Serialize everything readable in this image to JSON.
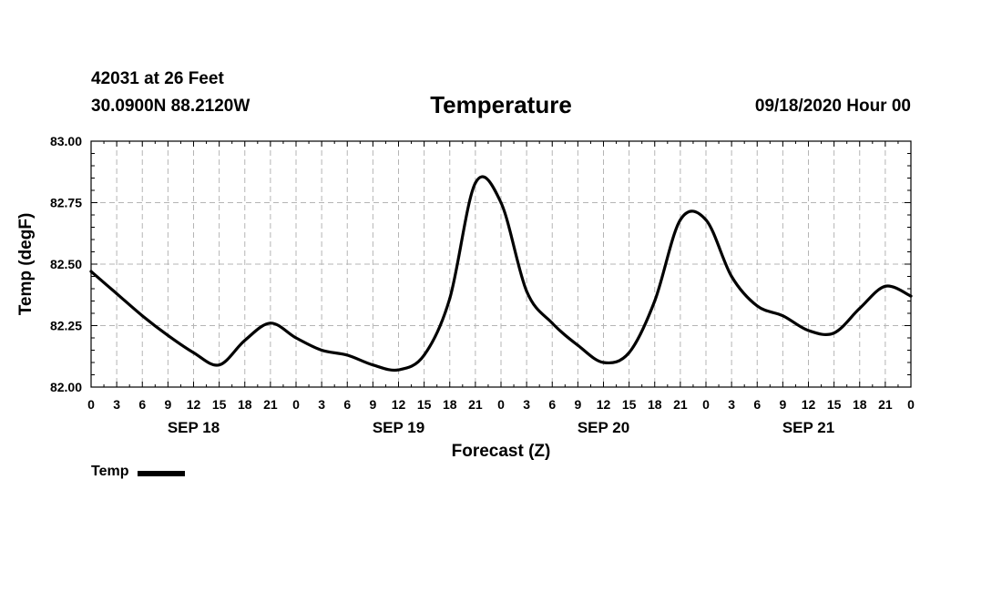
{
  "header": {
    "station": "42031 at 26 Feet",
    "coordinates": "30.0900N 88.2120W",
    "title": "Temperature",
    "timestamp": "09/18/2020 Hour 00"
  },
  "legend": {
    "label": "Temp"
  },
  "chart_data": {
    "type": "line",
    "title": "Temperature",
    "xlabel": "Forecast (Z)",
    "ylabel": "Temp (degF)",
    "xlim": [
      0,
      96
    ],
    "ylim": [
      82.0,
      83.0
    ],
    "grid": true,
    "x_ticks": [
      0,
      3,
      6,
      9,
      12,
      15,
      18,
      21,
      24,
      27,
      30,
      33,
      36,
      39,
      42,
      45,
      48,
      51,
      54,
      57,
      60,
      63,
      66,
      69,
      72,
      75,
      78,
      81,
      84,
      87,
      90,
      93,
      96
    ],
    "x_tick_labels": [
      "0",
      "3",
      "6",
      "9",
      "12",
      "15",
      "18",
      "21",
      "0",
      "3",
      "6",
      "9",
      "12",
      "15",
      "18",
      "21",
      "0",
      "3",
      "6",
      "9",
      "12",
      "15",
      "18",
      "21",
      "0",
      "3",
      "6",
      "9",
      "12",
      "15",
      "18",
      "21",
      "0"
    ],
    "y_ticks": [
      82.0,
      82.25,
      82.5,
      82.75,
      83.0
    ],
    "y_tick_labels": [
      "82.00",
      "82.25",
      "82.50",
      "82.75",
      "83.00"
    ],
    "date_labels": [
      {
        "x": 12,
        "label": "SEP 18"
      },
      {
        "x": 36,
        "label": "SEP 19"
      },
      {
        "x": 60,
        "label": "SEP 20"
      },
      {
        "x": 84,
        "label": "SEP 21"
      }
    ],
    "series": [
      {
        "name": "Temp",
        "color": "#000000",
        "x": [
          0,
          3,
          6,
          9,
          12,
          15,
          18,
          21,
          24,
          27,
          30,
          33,
          36,
          39,
          42,
          45,
          48,
          51,
          54,
          57,
          60,
          63,
          66,
          69,
          72,
          75,
          78,
          81,
          84,
          87,
          90,
          93,
          96
        ],
        "values": [
          82.47,
          82.38,
          82.29,
          82.21,
          82.14,
          82.09,
          82.19,
          82.26,
          82.2,
          82.15,
          82.13,
          82.09,
          82.07,
          82.13,
          82.36,
          82.83,
          82.75,
          82.39,
          82.26,
          82.17,
          82.1,
          82.14,
          82.35,
          82.68,
          82.68,
          82.45,
          82.33,
          82.29,
          82.23,
          82.22,
          82.32,
          82.41,
          82.37
        ]
      }
    ]
  }
}
